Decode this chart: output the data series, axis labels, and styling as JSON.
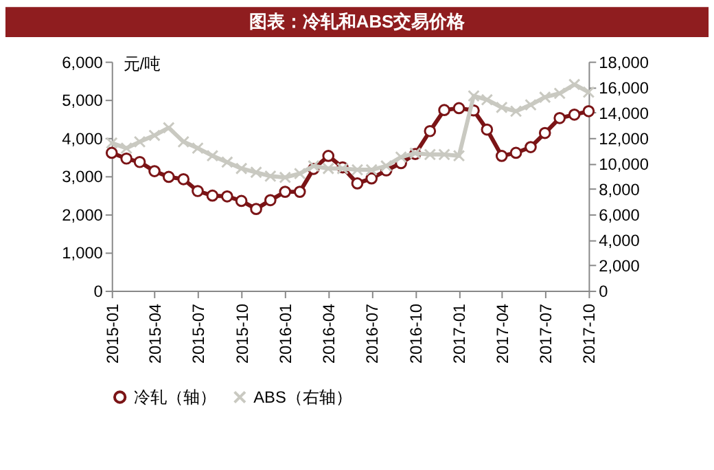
{
  "chart_data": {
    "type": "line",
    "title": "图表：冷轧和ABS交易价格",
    "ylabel": "元/吨",
    "x": [
      "2015-01",
      "2015-02",
      "2015-03",
      "2015-04",
      "2015-05",
      "2015-06",
      "2015-07",
      "2015-08",
      "2015-09",
      "2015-10",
      "2015-11",
      "2015-12",
      "2016-01",
      "2016-02",
      "2016-03",
      "2016-04",
      "2016-05",
      "2016-06",
      "2016-07",
      "2016-08",
      "2016-09",
      "2016-10",
      "2016-11",
      "2016-12",
      "2017-01",
      "2017-02",
      "2017-03",
      "2017-04",
      "2017-05",
      "2017-06",
      "2017-07",
      "2017-08",
      "2017-09",
      "2017-10"
    ],
    "xlim": [
      "2015-01",
      "2017-10"
    ],
    "xticks": [
      "2015-01",
      "2015-04",
      "2015-07",
      "2015-10",
      "2016-01",
      "2016-04",
      "2016-07",
      "2016-10",
      "2017-01",
      "2017-04",
      "2017-07",
      "2017-10"
    ],
    "ylim": [
      0,
      6000
    ],
    "yticks": [
      {
        "value": 0,
        "label": "0"
      },
      {
        "value": 1000,
        "label": "1,000"
      },
      {
        "value": 2000,
        "label": "2,000"
      },
      {
        "value": 3000,
        "label": "3,000"
      },
      {
        "value": 4000,
        "label": "4,000"
      },
      {
        "value": 5000,
        "label": "5,000"
      },
      {
        "value": 6000,
        "label": "6,000"
      }
    ],
    "y2lim": [
      0,
      18000
    ],
    "y2ticks": [
      {
        "value": 0,
        "label": "0"
      },
      {
        "value": 2000,
        "label": "2,000"
      },
      {
        "value": 4000,
        "label": "4,000"
      },
      {
        "value": 6000,
        "label": "6,000"
      },
      {
        "value": 8000,
        "label": "8,000"
      },
      {
        "value": 10000,
        "label": "10,000"
      },
      {
        "value": 12000,
        "label": "12,000"
      },
      {
        "value": 14000,
        "label": "14,000"
      },
      {
        "value": 16000,
        "label": "16,000"
      },
      {
        "value": 18000,
        "label": "18,000"
      }
    ],
    "series": [
      {
        "name": "冷轧（轴）",
        "color": "#7b1416",
        "marker": "circle",
        "values": [
          3610,
          3460,
          3370,
          3130,
          2980,
          2920,
          2610,
          2490,
          2470,
          2350,
          2140,
          2370,
          2590,
          2590,
          3190,
          3530,
          3230,
          2810,
          2940,
          3150,
          3340,
          3580,
          4180,
          4730,
          4780,
          4720,
          4220,
          3530,
          3610,
          3760,
          4130,
          4520,
          4610,
          4700
        ]
      },
      {
        "name": "ABS（右轴）",
        "color": "#c9c9c1",
        "marker": "cross",
        "axis": "y2",
        "values": [
          11600,
          11200,
          11700,
          12200,
          12800,
          11700,
          11200,
          10600,
          10100,
          9600,
          9300,
          9000,
          8900,
          9200,
          9800,
          9600,
          9600,
          9500,
          9500,
          9800,
          10500,
          10800,
          10700,
          10700,
          10600,
          15300,
          15000,
          14400,
          14100,
          14600,
          15200,
          15500,
          16200,
          15600
        ]
      }
    ],
    "legend": "bottom",
    "grid": false,
    "line_style": "solid"
  }
}
